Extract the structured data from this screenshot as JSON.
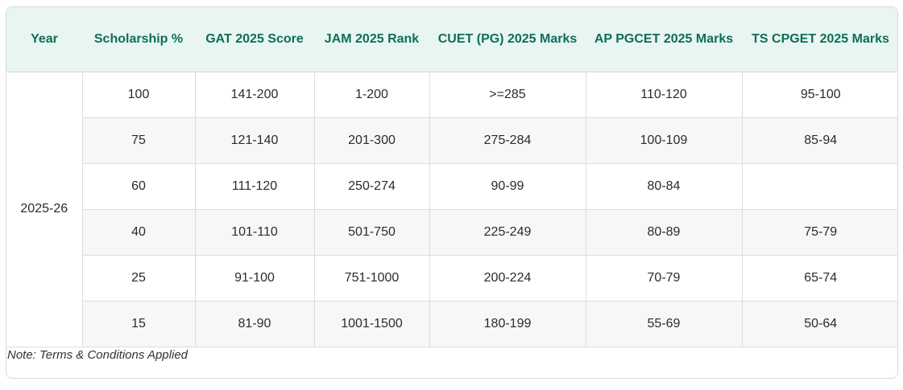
{
  "table": {
    "headers": [
      "Year",
      "Scholarship %",
      "GAT 2025 Score",
      "JAM 2025 Rank",
      "CUET (PG) 2025 Marks",
      "AP PGCET 2025 Marks",
      "TS CPGET 2025 Marks"
    ],
    "year": "2025-26",
    "rows": [
      [
        "100",
        "141-200",
        "1-200",
        ">=285",
        "110-120",
        "95-100"
      ],
      [
        "75",
        "121-140",
        "201-300",
        "275-284",
        "100-109",
        "85-94"
      ],
      [
        "60",
        "111-120",
        "250-274",
        "90-99",
        "80-84",
        ""
      ],
      [
        "40",
        "101-110",
        "501-750",
        "225-249",
        "80-89",
        "75-79"
      ],
      [
        "25",
        "91-100",
        "751-1000",
        "200-224",
        "70-79",
        "65-74"
      ],
      [
        "15",
        "81-90",
        "1001-1500",
        "180-199",
        "55-69",
        "50-64"
      ]
    ]
  },
  "note": "Note: Terms & Conditions Applied",
  "colors": {
    "header_bg": "#e9f5f0",
    "header_text": "#0d6e5a",
    "row_alt_bg": "#f7f7f7"
  }
}
